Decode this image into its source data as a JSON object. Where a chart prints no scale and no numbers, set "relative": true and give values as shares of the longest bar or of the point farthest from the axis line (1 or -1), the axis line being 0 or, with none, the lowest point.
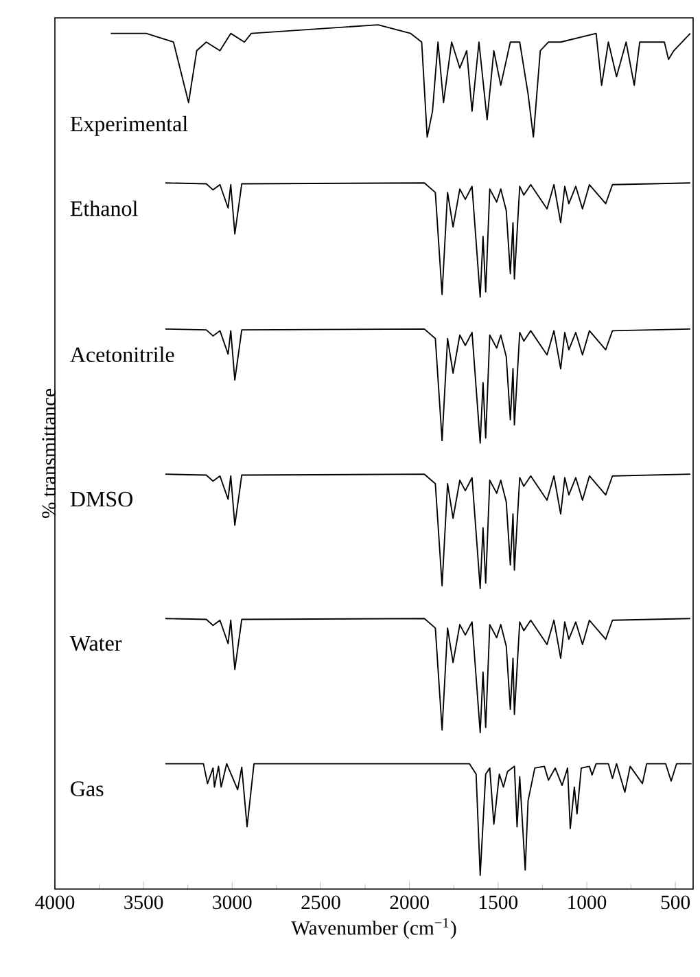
{
  "chart_data": {
    "type": "line",
    "xlabel": "Wavenumber (cm$^{−1}$)",
    "ylabel": "% transmittance",
    "relative": true,
    "legend": false,
    "xlim": [
      4000,
      400
    ],
    "xticks": [
      4000,
      3500,
      3000,
      2500,
      2000,
      1500,
      1000,
      500
    ],
    "series": [
      {
        "name": "Experimental",
        "color": "#000000",
        "x": [
          3685,
          3485,
          3331,
          3246,
          3200,
          3146,
          3069,
          3008,
          2931,
          2892,
          2177,
          1993,
          1931,
          1900,
          1870,
          1839,
          1808,
          1762,
          1716,
          1677,
          1647,
          1608,
          1562,
          1524,
          1485,
          1431,
          1378,
          1331,
          1301,
          1262,
          1216,
          1147,
          947,
          916,
          878,
          832,
          778,
          732,
          701,
          562,
          539,
          509,
          416
        ],
        "values": [
          0.99,
          0.99,
          0.98,
          0.91,
          0.97,
          0.98,
          0.97,
          0.99,
          0.98,
          0.99,
          1.0,
          0.99,
          0.98,
          0.87,
          0.9,
          0.98,
          0.91,
          0.98,
          0.95,
          0.97,
          0.9,
          0.98,
          0.89,
          0.97,
          0.93,
          0.98,
          0.98,
          0.92,
          0.87,
          0.97,
          0.98,
          0.98,
          0.99,
          0.93,
          0.98,
          0.94,
          0.98,
          0.93,
          0.98,
          0.98,
          0.96,
          0.97,
          0.99
        ]
      },
      {
        "name": "Ethanol",
        "color": "#000000",
        "x": [
          3377,
          3146,
          3108,
          3069,
          3023,
          3008,
          2985,
          2946,
          1916,
          1854,
          1816,
          1785,
          1754,
          1716,
          1685,
          1647,
          1601,
          1585,
          1570,
          1547,
          1508,
          1485,
          1454,
          1431,
          1416,
          1408,
          1378,
          1355,
          1316,
          1224,
          1185,
          1147,
          1124,
          1101,
          1062,
          1024,
          985,
          893,
          855,
          416
        ],
        "values": [
          0.817,
          0.816,
          0.809,
          0.815,
          0.788,
          0.815,
          0.758,
          0.816,
          0.817,
          0.806,
          0.688,
          0.806,
          0.766,
          0.81,
          0.798,
          0.813,
          0.685,
          0.755,
          0.691,
          0.81,
          0.795,
          0.81,
          0.785,
          0.712,
          0.771,
          0.706,
          0.813,
          0.803,
          0.815,
          0.787,
          0.815,
          0.771,
          0.813,
          0.793,
          0.813,
          0.787,
          0.815,
          0.793,
          0.815,
          0.817
        ]
      },
      {
        "name": "Acetonitrile",
        "color": "#000000",
        "x": [
          3377,
          3146,
          3108,
          3069,
          3023,
          3008,
          2985,
          2946,
          1916,
          1854,
          1816,
          1785,
          1754,
          1716,
          1685,
          1647,
          1601,
          1585,
          1570,
          1547,
          1508,
          1485,
          1454,
          1431,
          1416,
          1408,
          1378,
          1355,
          1316,
          1224,
          1185,
          1147,
          1124,
          1101,
          1062,
          1024,
          985,
          893,
          855,
          416
        ],
        "values": [
          0.648,
          0.647,
          0.64,
          0.646,
          0.619,
          0.646,
          0.589,
          0.647,
          0.648,
          0.637,
          0.519,
          0.637,
          0.597,
          0.641,
          0.629,
          0.644,
          0.516,
          0.586,
          0.522,
          0.641,
          0.626,
          0.641,
          0.616,
          0.543,
          0.602,
          0.537,
          0.644,
          0.634,
          0.646,
          0.618,
          0.646,
          0.602,
          0.644,
          0.624,
          0.644,
          0.618,
          0.646,
          0.624,
          0.646,
          0.648
        ]
      },
      {
        "name": "DMSO",
        "color": "#000000",
        "x": [
          3377,
          3146,
          3108,
          3069,
          3023,
          3008,
          2985,
          2946,
          1916,
          1854,
          1816,
          1785,
          1754,
          1716,
          1685,
          1647,
          1601,
          1585,
          1570,
          1547,
          1508,
          1485,
          1454,
          1431,
          1416,
          1408,
          1378,
          1355,
          1316,
          1224,
          1185,
          1147,
          1124,
          1101,
          1062,
          1024,
          985,
          893,
          855,
          416
        ],
        "values": [
          0.48,
          0.479,
          0.472,
          0.478,
          0.451,
          0.478,
          0.421,
          0.479,
          0.48,
          0.469,
          0.351,
          0.469,
          0.429,
          0.473,
          0.461,
          0.476,
          0.348,
          0.418,
          0.354,
          0.473,
          0.458,
          0.473,
          0.448,
          0.375,
          0.434,
          0.369,
          0.476,
          0.466,
          0.478,
          0.45,
          0.478,
          0.434,
          0.476,
          0.456,
          0.476,
          0.45,
          0.478,
          0.456,
          0.478,
          0.48
        ]
      },
      {
        "name": "Water",
        "color": "#000000",
        "x": [
          3377,
          3146,
          3108,
          3069,
          3023,
          3008,
          2985,
          2946,
          1916,
          1854,
          1816,
          1785,
          1754,
          1716,
          1685,
          1647,
          1601,
          1585,
          1570,
          1547,
          1508,
          1485,
          1454,
          1431,
          1416,
          1408,
          1378,
          1355,
          1316,
          1224,
          1185,
          1147,
          1124,
          1101,
          1062,
          1024,
          985,
          893,
          855,
          416
        ],
        "values": [
          0.313,
          0.312,
          0.305,
          0.311,
          0.284,
          0.311,
          0.254,
          0.312,
          0.313,
          0.302,
          0.184,
          0.302,
          0.262,
          0.306,
          0.294,
          0.309,
          0.181,
          0.251,
          0.187,
          0.306,
          0.291,
          0.306,
          0.281,
          0.208,
          0.267,
          0.202,
          0.309,
          0.299,
          0.311,
          0.283,
          0.311,
          0.267,
          0.309,
          0.289,
          0.309,
          0.283,
          0.311,
          0.289,
          0.311,
          0.313
        ]
      },
      {
        "name": "Gas",
        "color": "#000000",
        "x": [
          3377,
          3162,
          3139,
          3108,
          3100,
          3077,
          3062,
          3031,
          2969,
          2946,
          2916,
          2877,
          1662,
          1624,
          1601,
          1570,
          1547,
          1524,
          1493,
          1470,
          1447,
          1408,
          1393,
          1378,
          1347,
          1331,
          1293,
          1239,
          1216,
          1178,
          1139,
          1108,
          1093,
          1070,
          1055,
          1031,
          985,
          970,
          947,
          878,
          855,
          832,
          785,
          755,
          686,
          662,
          555,
          524,
          493,
          409
        ],
        "values": [
          0.145,
          0.145,
          0.122,
          0.14,
          0.118,
          0.142,
          0.118,
          0.145,
          0.115,
          0.141,
          0.072,
          0.145,
          0.145,
          0.133,
          0.016,
          0.133,
          0.14,
          0.075,
          0.133,
          0.118,
          0.136,
          0.142,
          0.072,
          0.13,
          0.022,
          0.102,
          0.14,
          0.142,
          0.126,
          0.14,
          0.12,
          0.14,
          0.07,
          0.118,
          0.087,
          0.14,
          0.142,
          0.132,
          0.145,
          0.145,
          0.128,
          0.145,
          0.112,
          0.142,
          0.122,
          0.145,
          0.145,
          0.125,
          0.145,
          0.145
        ]
      }
    ]
  }
}
